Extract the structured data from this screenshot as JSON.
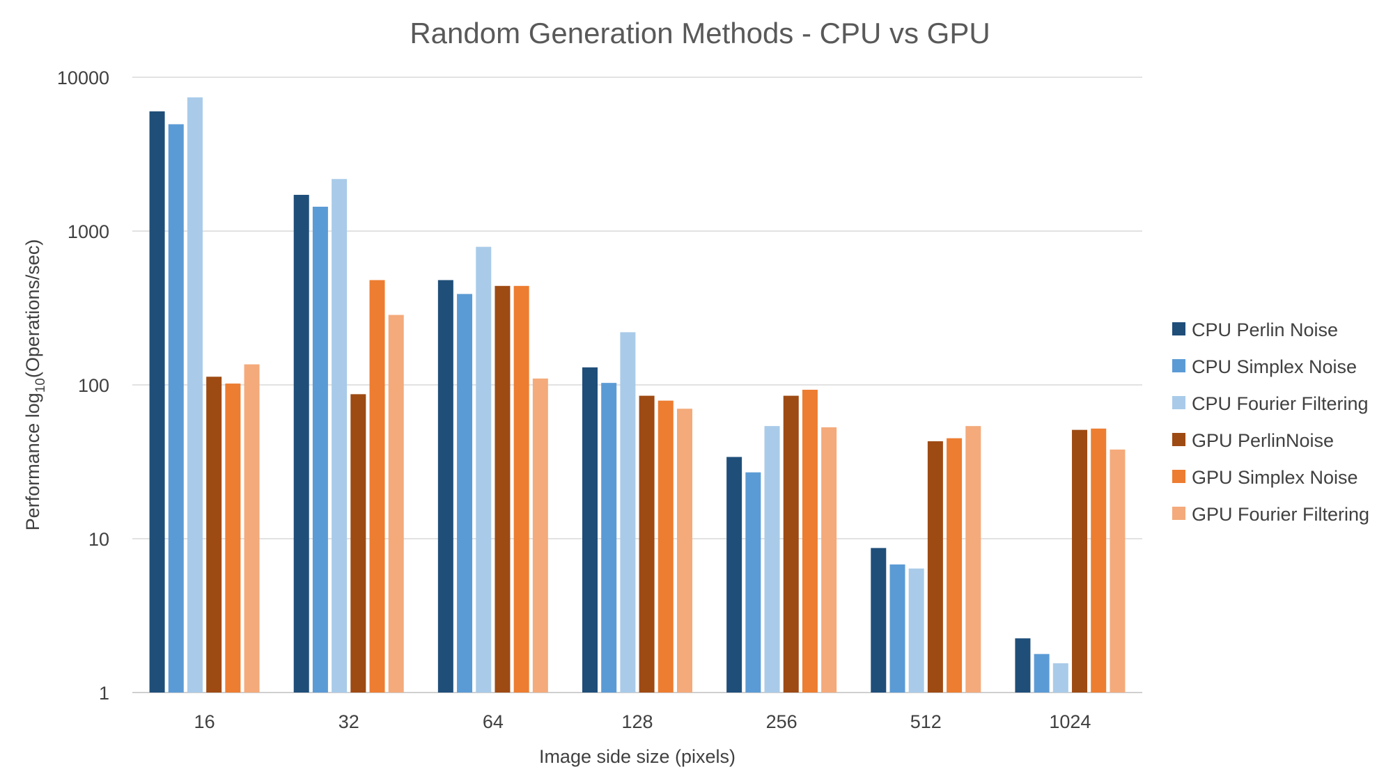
{
  "chart_data": {
    "type": "bar",
    "title": "Random Generation Methods - CPU vs GPU",
    "xlabel": "Image side size (pixels)",
    "ylabel_parts": {
      "prefix": "Performance log",
      "subscript": "10",
      "suffix": "(Operations/sec)"
    },
    "y_scale": "log",
    "ylim": [
      1,
      10000
    ],
    "y_ticks": [
      "1",
      "10",
      "100",
      "1000",
      "10000"
    ],
    "grid": true,
    "legend_position": "right",
    "categories": [
      "16",
      "32",
      "64",
      "128",
      "256",
      "512",
      "1024"
    ],
    "series": [
      {
        "name": "CPU Perlin Noise",
        "color": "#1f4e79",
        "values": [
          6000,
          1720,
          480,
          130,
          34,
          8.7,
          2.25
        ]
      },
      {
        "name": "CPU Simplex Noise",
        "color": "#5b9bd5",
        "values": [
          4950,
          1440,
          390,
          103,
          27,
          6.8,
          1.78
        ]
      },
      {
        "name": "CPU Fourier Filtering",
        "color": "#a9cbe9",
        "values": [
          7400,
          2180,
          790,
          220,
          54,
          6.4,
          1.55
        ]
      },
      {
        "name": "GPU PerlinNoise",
        "color": "#9e4a13",
        "values": [
          113,
          87,
          440,
          85,
          85,
          43,
          51
        ]
      },
      {
        "name": "GPU Simplex Noise",
        "color": "#ed7d31",
        "values": [
          102,
          480,
          440,
          79,
          93,
          45,
          52
        ]
      },
      {
        "name": "GPU Fourier Filtering",
        "color": "#f4aa7b",
        "values": [
          136,
          285,
          110,
          70,
          53,
          54,
          38
        ]
      }
    ]
  }
}
